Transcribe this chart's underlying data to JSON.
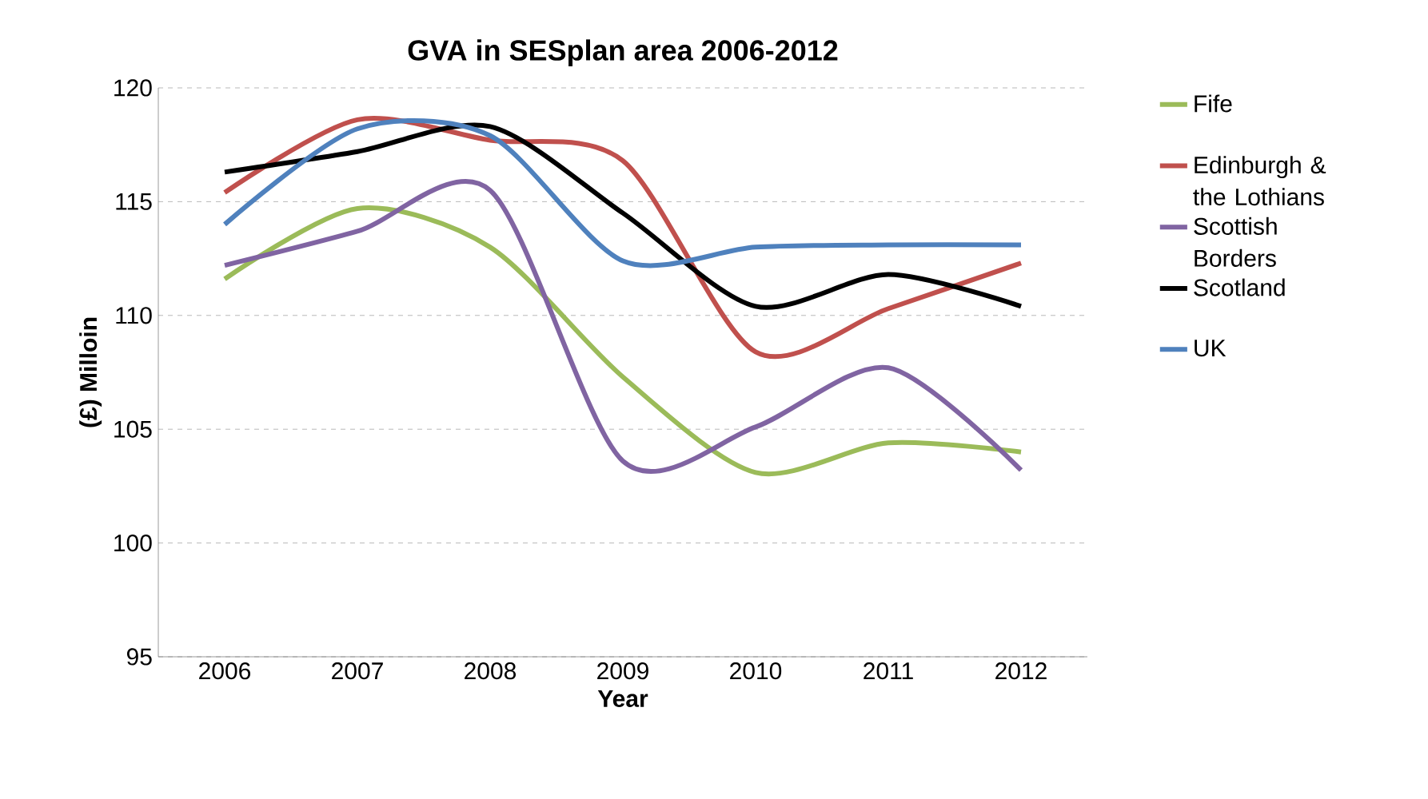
{
  "chart_data": {
    "type": "line",
    "title": "GVA in SESplan area 2006-2012",
    "xlabel": "Year",
    "ylabel": "(£) Milloin",
    "categories": [
      "2006",
      "2007",
      "2008",
      "2009",
      "2010",
      "2011",
      "2012"
    ],
    "series": [
      {
        "name": "Fife",
        "color": "#9bbb59",
        "values": [
          111.6,
          114.7,
          113.0,
          107.3,
          103.1,
          104.4,
          104.0
        ]
      },
      {
        "name": "Edinburgh & the Lothians",
        "color": "#c0504d",
        "values": [
          115.4,
          118.6,
          117.7,
          116.8,
          108.4,
          110.3,
          112.3
        ]
      },
      {
        "name": "Scottish Borders",
        "color": "#8064a2",
        "values": [
          112.2,
          113.7,
          115.5,
          103.6,
          105.1,
          107.7,
          103.2
        ]
      },
      {
        "name": "Scotland",
        "color": "#000000",
        "values": [
          116.3,
          117.2,
          118.3,
          114.5,
          110.4,
          111.8,
          110.4
        ]
      },
      {
        "name": "UK",
        "color": "#4f81bd",
        "values": [
          114.0,
          118.2,
          117.9,
          112.4,
          113.0,
          113.1,
          113.1
        ]
      }
    ],
    "ylim": [
      95,
      120
    ],
    "yticks": [
      95,
      100,
      105,
      110,
      115,
      120
    ],
    "grid": "y",
    "legend": "right",
    "marker": "none",
    "line_style": "solid"
  }
}
